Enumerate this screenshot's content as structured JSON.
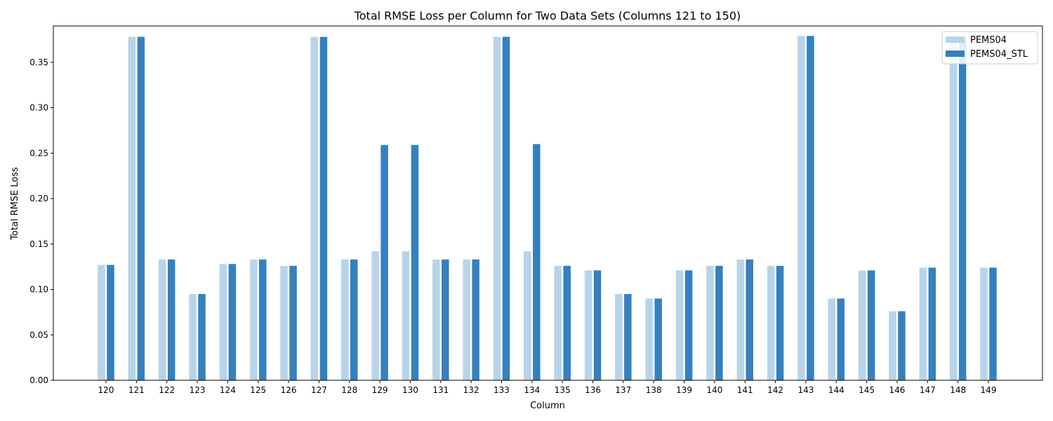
{
  "chart_data": {
    "type": "bar",
    "title": "Total RMSE Loss per Column for Two Data Sets (Columns 121 to 150)",
    "xlabel": "Column",
    "ylabel": "Total RMSE Loss",
    "ylim": [
      0,
      0.39
    ],
    "yticks": [
      "0.00",
      "0.05",
      "0.10",
      "0.15",
      "0.20",
      "0.25",
      "0.30",
      "0.35"
    ],
    "legend_position": "top-right",
    "categories": [
      "120",
      "121",
      "122",
      "123",
      "124",
      "125",
      "126",
      "127",
      "128",
      "129",
      "130",
      "131",
      "132",
      "133",
      "134",
      "135",
      "136",
      "137",
      "138",
      "139",
      "140",
      "141",
      "142",
      "143",
      "144",
      "145",
      "146",
      "147",
      "148",
      "149"
    ],
    "series": [
      {
        "name": "PEMS04",
        "color": "#b7d4ea",
        "values": [
          0.127,
          0.378,
          0.133,
          0.095,
          0.128,
          0.133,
          0.126,
          0.378,
          0.133,
          0.142,
          0.142,
          0.133,
          0.133,
          0.378,
          0.142,
          0.126,
          0.121,
          0.095,
          0.09,
          0.121,
          0.126,
          0.133,
          0.126,
          0.379,
          0.09,
          0.121,
          0.076,
          0.124,
          0.378,
          0.124
        ]
      },
      {
        "name": "PEMS04_STL",
        "color": "#3580bf",
        "values": [
          0.127,
          0.378,
          0.133,
          0.095,
          0.128,
          0.133,
          0.126,
          0.378,
          0.133,
          0.259,
          0.259,
          0.133,
          0.133,
          0.378,
          0.26,
          0.126,
          0.121,
          0.095,
          0.09,
          0.121,
          0.126,
          0.133,
          0.126,
          0.379,
          0.09,
          0.121,
          0.076,
          0.124,
          0.378,
          0.124
        ]
      }
    ]
  }
}
